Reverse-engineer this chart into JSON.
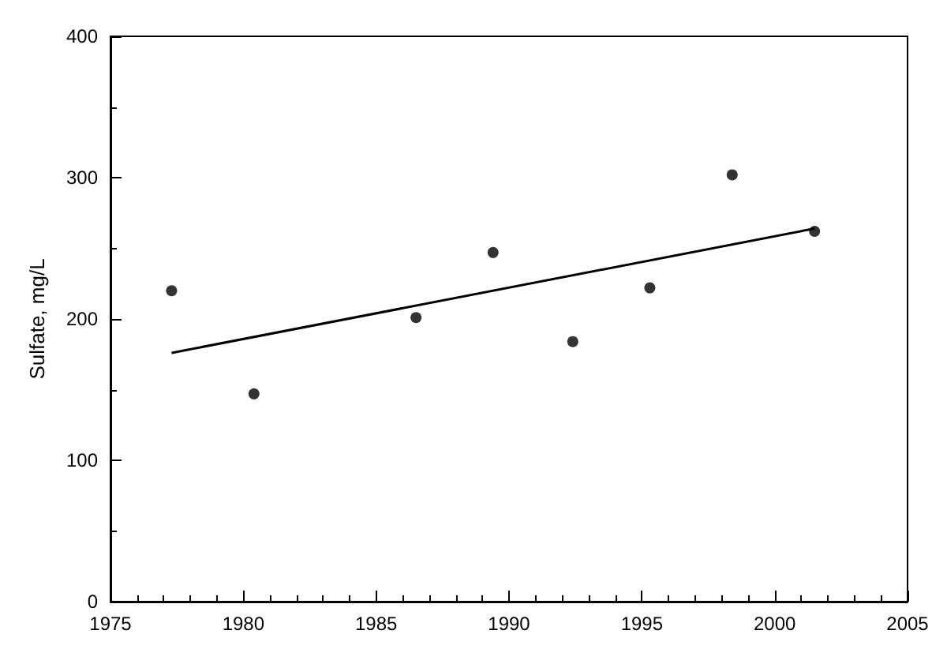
{
  "chart_data": {
    "type": "scatter",
    "ylabel": "Sulfate, mg/L",
    "x": [
      1977.3,
      1980.4,
      1986.5,
      1989.4,
      1992.4,
      1995.3,
      1998.4,
      2001.5
    ],
    "series": [
      {
        "color": "#000000",
        "marker": "circle",
        "values": [
          220,
          147,
          201,
          247,
          184,
          222,
          302,
          262
        ]
      },
      {
        "type": "line",
        "color": "#000000",
        "x": [
          1977.3,
          2001.5
        ],
        "values": [
          176,
          264
        ]
      }
    ],
    "xlim": [
      1975,
      2005
    ],
    "xticks": [
      1975,
      1980,
      1985,
      1990,
      1995,
      2000,
      2005
    ],
    "ylim": [
      0,
      400
    ],
    "yticks": [
      0,
      100,
      200,
      300,
      400
    ],
    "grid": false
  }
}
